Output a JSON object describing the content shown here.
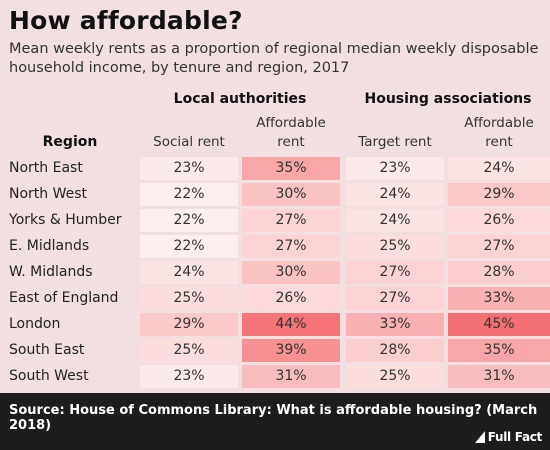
{
  "title": "How affordable?",
  "subtitle": "Mean weekly rents as a proportion of regional median weekly disposable household income, by tenure and region, 2017",
  "source": "Source: House of Commons Library: What is affordable housing? (March 2018)",
  "brand": "Full Fact",
  "chart_data": {
    "type": "table",
    "region_header": "Region",
    "groups": [
      "Local authorities",
      "Housing associations"
    ],
    "columns": [
      "Social rent",
      "Affordable rent",
      "Target rent",
      "Affordable rent"
    ],
    "rows": [
      {
        "region": "North East",
        "values": [
          23,
          35,
          23,
          24
        ],
        "labels": [
          "23%",
          "35%",
          "23%",
          "24%"
        ]
      },
      {
        "region": "North West",
        "values": [
          22,
          30,
          24,
          29
        ],
        "labels": [
          "22%",
          "30%",
          "24%",
          "29%"
        ]
      },
      {
        "region": "Yorks & Humber",
        "values": [
          22,
          27,
          24,
          26
        ],
        "labels": [
          "22%",
          "27%",
          "24%",
          "26%"
        ]
      },
      {
        "region": "E. Midlands",
        "values": [
          22,
          27,
          25,
          27
        ],
        "labels": [
          "22%",
          "27%",
          "25%",
          "27%"
        ]
      },
      {
        "region": "W. Midlands",
        "values": [
          24,
          30,
          27,
          28
        ],
        "labels": [
          "24%",
          "30%",
          "27%",
          "28%"
        ]
      },
      {
        "region": "East of England",
        "values": [
          25,
          26,
          27,
          33
        ],
        "labels": [
          "25%",
          "26%",
          "27%",
          "33%"
        ]
      },
      {
        "region": "London",
        "values": [
          29,
          44,
          33,
          45
        ],
        "labels": [
          "29%",
          "44%",
          "33%",
          "45%"
        ]
      },
      {
        "region": "South East",
        "values": [
          25,
          39,
          28,
          35
        ],
        "labels": [
          "25%",
          "39%",
          "28%",
          "35%"
        ]
      },
      {
        "region": "South West",
        "values": [
          23,
          31,
          25,
          31
        ],
        "labels": [
          "23%",
          "31%",
          "25%",
          "31%"
        ]
      }
    ],
    "colors": {
      "low": "#fdf4f5",
      "high": "#f4696b"
    }
  }
}
